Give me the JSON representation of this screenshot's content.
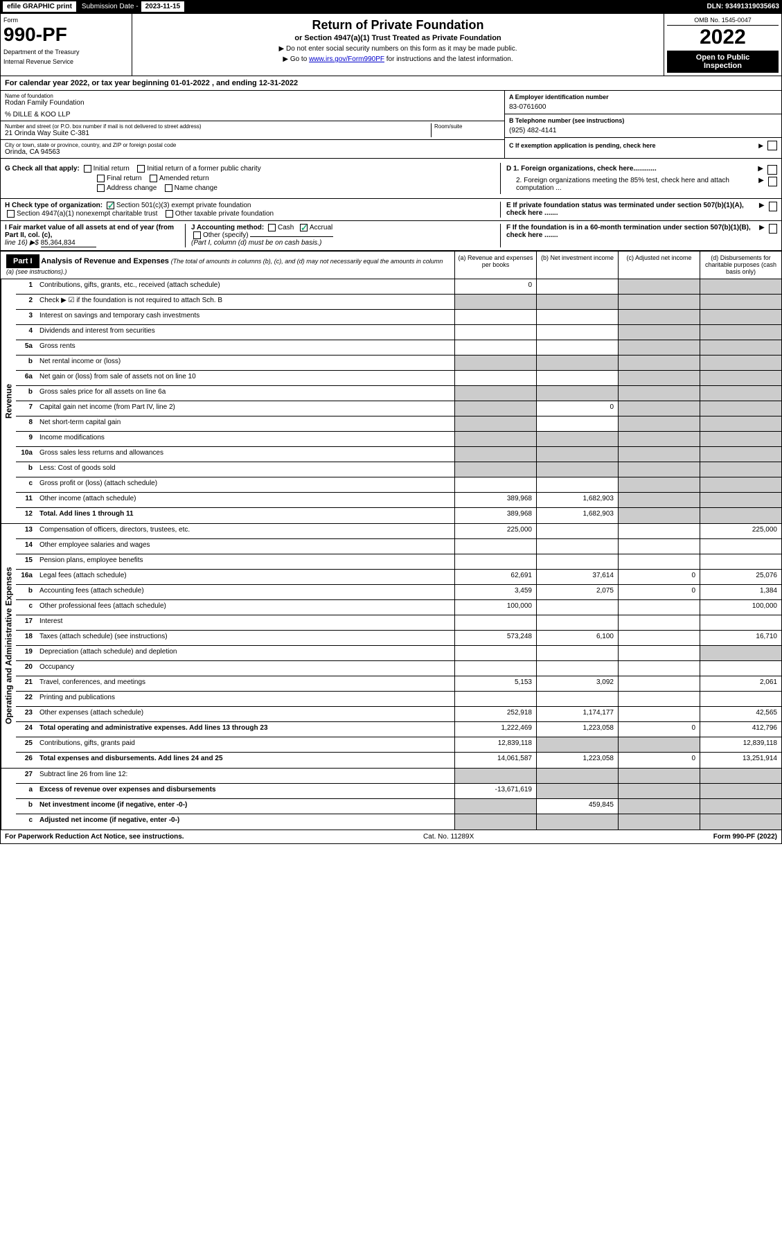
{
  "topbar": {
    "efile": "efile GRAPHIC print",
    "sub_label": "Submission Date -",
    "sub_date": "2023-11-15",
    "dln": "DLN: 93491319035663"
  },
  "header": {
    "form_label": "Form",
    "form_number": "990-PF",
    "dept1": "Department of the Treasury",
    "dept2": "Internal Revenue Service",
    "title": "Return of Private Foundation",
    "subtitle": "or Section 4947(a)(1) Trust Treated as Private Foundation",
    "instr1": "▶ Do not enter social security numbers on this form as it may be made public.",
    "instr2_pre": "▶ Go to ",
    "instr2_link": "www.irs.gov/Form990PF",
    "instr2_post": " for instructions and the latest information.",
    "omb": "OMB No. 1545-0047",
    "year": "2022",
    "open1": "Open to Public",
    "open2": "Inspection"
  },
  "cal_year": "For calendar year 2022, or tax year beginning 01-01-2022                        , and ending 12-31-2022",
  "info": {
    "name_label": "Name of foundation",
    "name": "Rodan Family Foundation",
    "care_of": "% DILLE & KOO LLP",
    "addr_label": "Number and street (or P.O. box number if mail is not delivered to street address)",
    "addr": "21 Orinda Way Suite C-381",
    "room_label": "Room/suite",
    "city_label": "City or town, state or province, country, and ZIP or foreign postal code",
    "city": "Orinda, CA  94563",
    "ein_label": "A Employer identification number",
    "ein": "83-0761600",
    "phone_label": "B Telephone number (see instructions)",
    "phone": "(925) 482-4141",
    "c_label": "C If exemption application is pending, check here",
    "d1": "D 1. Foreign organizations, check here............",
    "d2": "2. Foreign organizations meeting the 85% test, check here and attach computation ...",
    "e_label": "E  If private foundation status was terminated under section 507(b)(1)(A), check here .......",
    "f_label": "F  If the foundation is in a 60-month termination under section 507(b)(1)(B), check here .......",
    "g_label": "G Check all that apply:",
    "g_opts": [
      "Initial return",
      "Initial return of a former public charity",
      "Final return",
      "Amended return",
      "Address change",
      "Name change"
    ],
    "h_label": "H Check type of organization:",
    "h1": "Section 501(c)(3) exempt private foundation",
    "h2": "Section 4947(a)(1) nonexempt charitable trust",
    "h3": "Other taxable private foundation",
    "i_label": "I Fair market value of all assets at end of year (from Part II, col. (c),",
    "i_line": "line 16) ▶$",
    "i_value": "85,364,834",
    "j_label": "J Accounting method:",
    "j1": "Cash",
    "j2": "Accrual",
    "j3": "Other (specify)",
    "j_note": "(Part I, column (d) must be on cash basis.)"
  },
  "part1": {
    "label": "Part I",
    "title": "Analysis of Revenue and Expenses",
    "note": "(The total of amounts in columns (b), (c), and (d) may not necessarily equal the amounts in column (a) (see instructions).)",
    "col_a": "(a)   Revenue and expenses per books",
    "col_b": "(b)   Net investment income",
    "col_c": "(c)   Adjusted net income",
    "col_d": "(d)   Disbursements for charitable purposes (cash basis only)"
  },
  "sections": {
    "revenue": "Revenue",
    "expenses": "Operating and Administrative Expenses"
  },
  "rows": {
    "r1": {
      "n": "1",
      "d": "Contributions, gifts, grants, etc., received (attach schedule)",
      "a": "0"
    },
    "r2": {
      "n": "2",
      "d": "Check ▶ ☑ if the foundation is not required to attach Sch. B"
    },
    "r3": {
      "n": "3",
      "d": "Interest on savings and temporary cash investments"
    },
    "r4": {
      "n": "4",
      "d": "Dividends and interest from securities"
    },
    "r5a": {
      "n": "5a",
      "d": "Gross rents"
    },
    "r5b": {
      "n": "b",
      "d": "Net rental income or (loss)"
    },
    "r6a": {
      "n": "6a",
      "d": "Net gain or (loss) from sale of assets not on line 10"
    },
    "r6b": {
      "n": "b",
      "d": "Gross sales price for all assets on line 6a"
    },
    "r7": {
      "n": "7",
      "d": "Capital gain net income (from Part IV, line 2)",
      "b": "0"
    },
    "r8": {
      "n": "8",
      "d": "Net short-term capital gain"
    },
    "r9": {
      "n": "9",
      "d": "Income modifications"
    },
    "r10a": {
      "n": "10a",
      "d": "Gross sales less returns and allowances"
    },
    "r10b": {
      "n": "b",
      "d": "Less: Cost of goods sold"
    },
    "r10c": {
      "n": "c",
      "d": "Gross profit or (loss) (attach schedule)"
    },
    "r11": {
      "n": "11",
      "d": "Other income (attach schedule)",
      "a": "389,968",
      "b": "1,682,903"
    },
    "r12": {
      "n": "12",
      "d": "Total. Add lines 1 through 11",
      "a": "389,968",
      "b": "1,682,903",
      "bold": true
    },
    "r13": {
      "n": "13",
      "d": "Compensation of officers, directors, trustees, etc.",
      "a": "225,000",
      "dd": "225,000"
    },
    "r14": {
      "n": "14",
      "d": "Other employee salaries and wages"
    },
    "r15": {
      "n": "15",
      "d": "Pension plans, employee benefits"
    },
    "r16a": {
      "n": "16a",
      "d": "Legal fees (attach schedule)",
      "a": "62,691",
      "b": "37,614",
      "c": "0",
      "dd": "25,076"
    },
    "r16b": {
      "n": "b",
      "d": "Accounting fees (attach schedule)",
      "a": "3,459",
      "b": "2,075",
      "c": "0",
      "dd": "1,384"
    },
    "r16c": {
      "n": "c",
      "d": "Other professional fees (attach schedule)",
      "a": "100,000",
      "dd": "100,000"
    },
    "r17": {
      "n": "17",
      "d": "Interest"
    },
    "r18": {
      "n": "18",
      "d": "Taxes (attach schedule) (see instructions)",
      "a": "573,248",
      "b": "6,100",
      "dd": "16,710"
    },
    "r19": {
      "n": "19",
      "d": "Depreciation (attach schedule) and depletion"
    },
    "r20": {
      "n": "20",
      "d": "Occupancy"
    },
    "r21": {
      "n": "21",
      "d": "Travel, conferences, and meetings",
      "a": "5,153",
      "b": "3,092",
      "dd": "2,061"
    },
    "r22": {
      "n": "22",
      "d": "Printing and publications"
    },
    "r23": {
      "n": "23",
      "d": "Other expenses (attach schedule)",
      "a": "252,918",
      "b": "1,174,177",
      "dd": "42,565"
    },
    "r24": {
      "n": "24",
      "d": "Total operating and administrative expenses. Add lines 13 through 23",
      "a": "1,222,469",
      "b": "1,223,058",
      "c": "0",
      "dd": "412,796",
      "bold": true
    },
    "r25": {
      "n": "25",
      "d": "Contributions, gifts, grants paid",
      "a": "12,839,118",
      "dd": "12,839,118"
    },
    "r26": {
      "n": "26",
      "d": "Total expenses and disbursements. Add lines 24 and 25",
      "a": "14,061,587",
      "b": "1,223,058",
      "c": "0",
      "dd": "13,251,914",
      "bold": true
    },
    "r27": {
      "n": "27",
      "d": "Subtract line 26 from line 12:"
    },
    "r27a": {
      "n": "a",
      "d": "Excess of revenue over expenses and disbursements",
      "a": "-13,671,619",
      "bold": true
    },
    "r27b": {
      "n": "b",
      "d": "Net investment income (if negative, enter -0-)",
      "b": "459,845",
      "bold": true
    },
    "r27c": {
      "n": "c",
      "d": "Adjusted net income (if negative, enter -0-)",
      "bold": true
    }
  },
  "footer": {
    "left": "For Paperwork Reduction Act Notice, see instructions.",
    "mid": "Cat. No. 11289X",
    "right": "Form 990-PF (2022)"
  }
}
